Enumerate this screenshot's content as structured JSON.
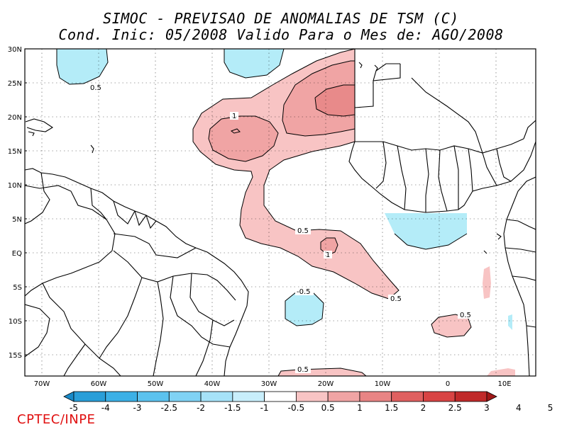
{
  "header": {
    "title": "SIMOC - PREVISAO DE ANOMALIAS DE TSM (C)",
    "subtitle": "Cond. Inic: 05/2008   Valido Para o Mes de: AGO/2008"
  },
  "map": {
    "lat_labels": [
      "30N",
      "25N",
      "20N",
      "15N",
      "10N",
      "5N",
      "EQ",
      "5S",
      "10S",
      "15S"
    ],
    "lon_labels": [
      "70W",
      "60W",
      "50W",
      "40W",
      "30W",
      "20W",
      "10W",
      "0",
      "10E"
    ],
    "contour_labels": [
      "0.5",
      "1",
      "0.5",
      "1",
      "0.5",
      "-0.5",
      "0.5",
      "0.5"
    ]
  },
  "colorbar": {
    "labels": [
      "-5",
      "-4",
      "-3",
      "-2.5",
      "-2",
      "-1.5",
      "-1",
      "-0.5",
      "0.5",
      "1",
      "1.5",
      "2",
      "2.5",
      "3",
      "4",
      "5"
    ],
    "colors": [
      "#1a8ac8",
      "#2a9ed8",
      "#3cb0e6",
      "#5cc2ee",
      "#80d2f4",
      "#a6e2f8",
      "#c8eefb",
      "#ffffff",
      "#f8c4c4",
      "#f0a4a4",
      "#e88484",
      "#e06060",
      "#d84444",
      "#c02a2a",
      "#a01818"
    ]
  },
  "footer": {
    "credit": "CPTEC/INPE"
  },
  "colors": {
    "positive": "#f8c4c4",
    "positive2": "#f0a4a4",
    "positive3": "#e88a8a",
    "negative": "#b4ecf8"
  }
}
